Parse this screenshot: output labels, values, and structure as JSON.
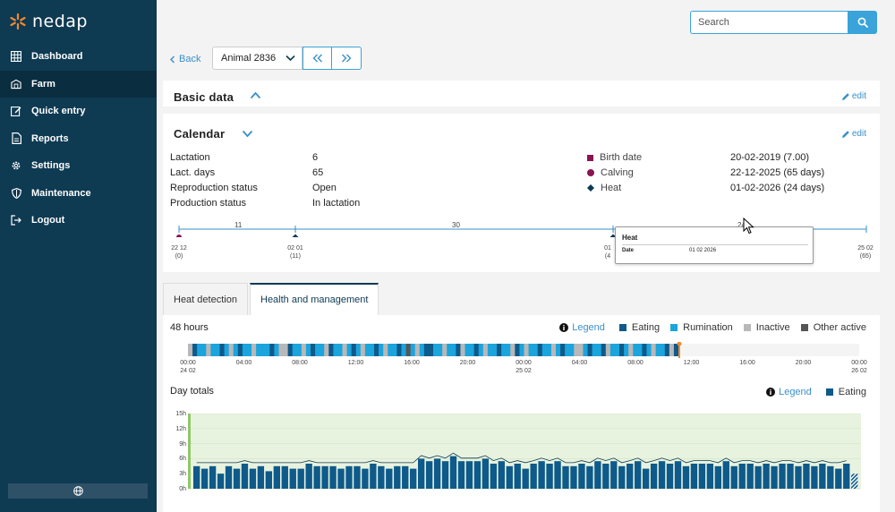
{
  "brand": {
    "name": "nedap",
    "logo_color": "#f28a30"
  },
  "sidebar": {
    "items": [
      {
        "label": "Dashboard",
        "icon": "grid-icon"
      },
      {
        "label": "Farm",
        "icon": "barn-icon",
        "active": true
      },
      {
        "label": "Quick entry",
        "icon": "edit-icon"
      },
      {
        "label": "Reports",
        "icon": "document-icon"
      },
      {
        "label": "Settings",
        "icon": "gear-icon"
      },
      {
        "label": "Maintenance",
        "icon": "shield-icon"
      },
      {
        "label": "Logout",
        "icon": "logout-icon"
      }
    ],
    "language_icon": "globe-icon"
  },
  "search": {
    "placeholder": "Search",
    "value": ""
  },
  "animal_nav": {
    "back_label": "Back",
    "selected_animal": "Animal 2836"
  },
  "basic_data": {
    "title": "Basic data",
    "edit_label": "edit"
  },
  "calendar": {
    "title": "Calendar",
    "edit_label": "edit",
    "fields": [
      {
        "label": "Lactation",
        "value": "6"
      },
      {
        "label": "Lact. days",
        "value": "65"
      },
      {
        "label": "Reproduction status",
        "value": "Open"
      },
      {
        "label": "Production status",
        "value": "In lactation"
      }
    ],
    "events": [
      {
        "label": "Birth date",
        "value": "20-02-2019 (7.00)",
        "marker": "square",
        "color": "#8a1550"
      },
      {
        "label": "Calving",
        "value": "22-12-2025 (65 days)",
        "marker": "circle",
        "color": "#8a1550"
      },
      {
        "label": "Heat",
        "value": "01-02-2026 (24 days)",
        "marker": "diamond",
        "color": "#0e3a52"
      }
    ],
    "timeline": {
      "segment_counts": [
        "11",
        "30",
        "24"
      ],
      "points": [
        {
          "date": "22 12",
          "sub": "(0)"
        },
        {
          "date": "02 01",
          "sub": "(11)"
        },
        {
          "date": "01",
          "sub": "(4"
        },
        {
          "date": "25 02",
          "sub": "(65)"
        }
      ]
    },
    "tooltip": {
      "title": "Heat",
      "label": "Date",
      "value": "01 02 2026"
    }
  },
  "tabs": [
    {
      "label": "Heat detection",
      "active": false
    },
    {
      "label": "Health and management",
      "active": true
    }
  ],
  "hours48": {
    "title": "48 hours",
    "legend_label": "Legend",
    "legend": [
      {
        "label": "Eating",
        "color": "#0e5a8a"
      },
      {
        "label": "Rumination",
        "color": "#1ca4dc"
      },
      {
        "label": "Inactive",
        "color": "#b8b8b8"
      },
      {
        "label": "Other active",
        "color": "#555555"
      }
    ],
    "ticks": [
      "00:00",
      "04:00",
      "08:00",
      "12:00",
      "16:00",
      "20:00",
      "00:00",
      "04:00",
      "08:00",
      "12:00",
      "16:00",
      "20:00",
      "00:00"
    ],
    "date_labels": [
      {
        "date": "24 02"
      },
      {
        "date": "25 02"
      },
      {
        "date": "26 02"
      }
    ]
  },
  "day_totals": {
    "title": "Day totals",
    "legend_label": "Legend",
    "legend": [
      {
        "label": "Eating",
        "color": "#0e5a8a"
      }
    ],
    "y_ticks": [
      "15h",
      "12h",
      "9h",
      "6h",
      "3h",
      "0h"
    ]
  },
  "chart_data": {
    "type": "bar",
    "title": "Day totals",
    "ylabel": "",
    "ylim": [
      0,
      15
    ],
    "series": [
      {
        "name": "Eating",
        "values": [
          4.5,
          4.0,
          4.5,
          3.0,
          4.5,
          4.0,
          5.0,
          4.0,
          4.5,
          3.5,
          4.5,
          4.5,
          4.0,
          4.0,
          5.0,
          4.5,
          4.5,
          4.5,
          4.0,
          4.5,
          4.5,
          4.0,
          5.0,
          4.5,
          4.0,
          4.5,
          4.5,
          4.0,
          6.0,
          5.5,
          6.0,
          5.5,
          6.5,
          5.5,
          5.5,
          5.5,
          6.0,
          5.0,
          5.5,
          4.5,
          5.0,
          4.0,
          5.0,
          5.5,
          5.0,
          5.5,
          4.5,
          4.5,
          5.0,
          4.5,
          5.5,
          5.0,
          5.5,
          4.5,
          5.0,
          5.5,
          4.0,
          5.0,
          5.5,
          5.0,
          5.5,
          4.5,
          5.0,
          5.0,
          5.0,
          4.5,
          5.5,
          4.5,
          5.0,
          5.0,
          4.5,
          5.0,
          4.5,
          5.0,
          5.0,
          4.5,
          5.0,
          4.5,
          5.0,
          4.5,
          4.0,
          5.0,
          3.0
        ],
        "color": "#0e5a8a"
      }
    ]
  }
}
